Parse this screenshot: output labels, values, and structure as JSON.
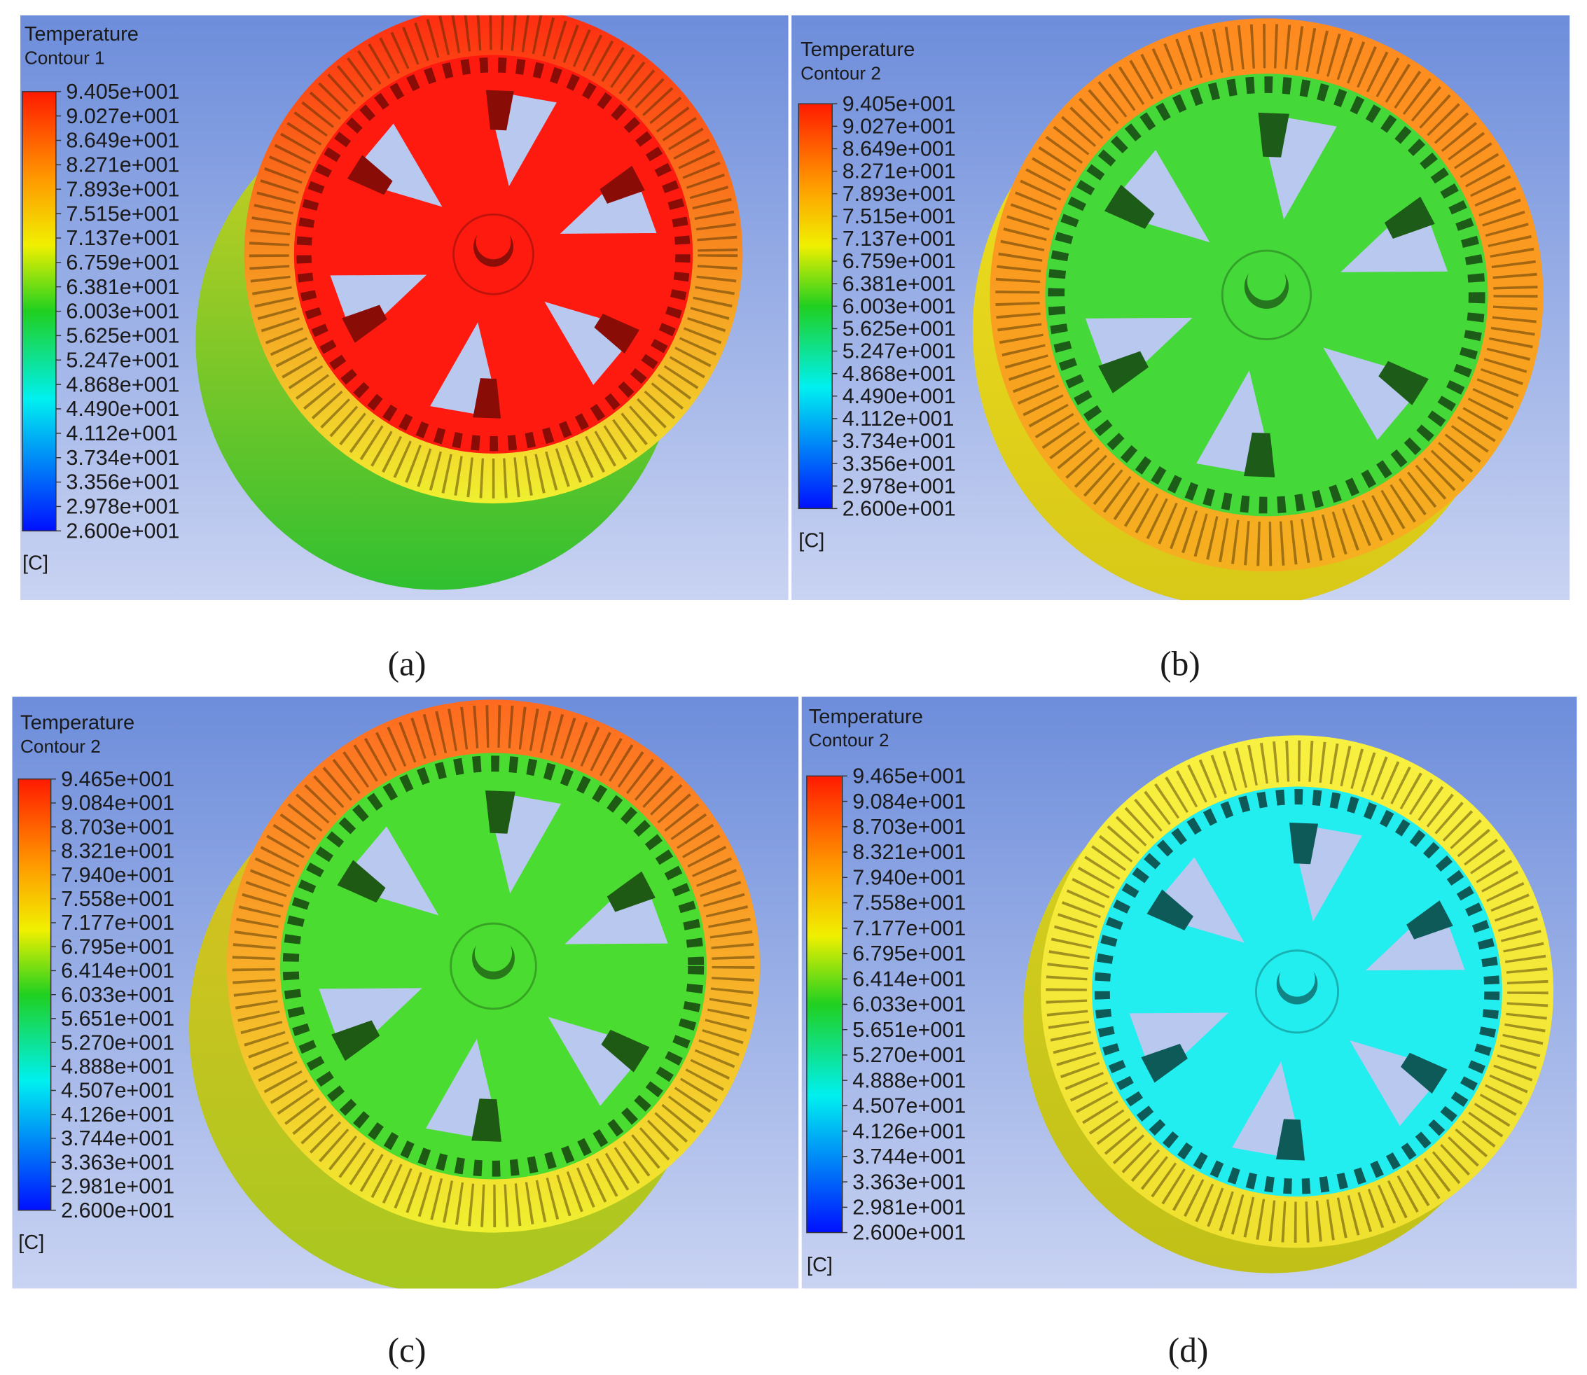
{
  "panels": [
    {
      "title": "Temperature",
      "subtitle": "Contour 1",
      "unit": "[C]",
      "caption": "(a)",
      "legend": [
        "9.405e+001",
        "9.027e+001",
        "8.649e+001",
        "8.271e+001",
        "7.893e+001",
        "7.515e+001",
        "7.137e+001",
        "6.759e+001",
        "6.381e+001",
        "6.003e+001",
        "5.625e+001",
        "5.247e+001",
        "4.868e+001",
        "4.490e+001",
        "4.112e+001",
        "3.734e+001",
        "3.356e+001",
        "2.978e+001",
        "2.600e+001"
      ]
    },
    {
      "title": "Temperature",
      "subtitle": "Contour 2",
      "unit": "[C]",
      "caption": "(b)",
      "legend": [
        "9.405e+001",
        "9.027e+001",
        "8.649e+001",
        "8.271e+001",
        "7.893e+001",
        "7.515e+001",
        "7.137e+001",
        "6.759e+001",
        "6.381e+001",
        "6.003e+001",
        "5.625e+001",
        "5.247e+001",
        "4.868e+001",
        "4.490e+001",
        "4.112e+001",
        "3.734e+001",
        "3.356e+001",
        "2.978e+001",
        "2.600e+001"
      ]
    },
    {
      "title": "Temperature",
      "subtitle": "Contour 2",
      "unit": "[C]",
      "caption": "(c)",
      "legend": [
        "9.465e+001",
        "9.084e+001",
        "8.703e+001",
        "8.321e+001",
        "7.940e+001",
        "7.558e+001",
        "7.177e+001",
        "6.795e+001",
        "6.414e+001",
        "6.033e+001",
        "5.651e+001",
        "5.270e+001",
        "4.888e+001",
        "4.507e+001",
        "4.126e+001",
        "3.744e+001",
        "3.363e+001",
        "2.981e+001",
        "2.600e+001"
      ]
    },
    {
      "title": "Temperature",
      "subtitle": "Contour 2",
      "unit": "[C]",
      "caption": "(d)",
      "legend": [
        "9.465e+001",
        "9.084e+001",
        "8.703e+001",
        "8.321e+001",
        "7.940e+001",
        "7.558e+001",
        "7.177e+001",
        "6.795e+001",
        "6.414e+001",
        "6.033e+001",
        "5.651e+001",
        "5.270e+001",
        "4.888e+001",
        "4.507e+001",
        "4.126e+001",
        "3.744e+001",
        "3.363e+001",
        "2.981e+001",
        "2.600e+001"
      ]
    }
  ]
}
